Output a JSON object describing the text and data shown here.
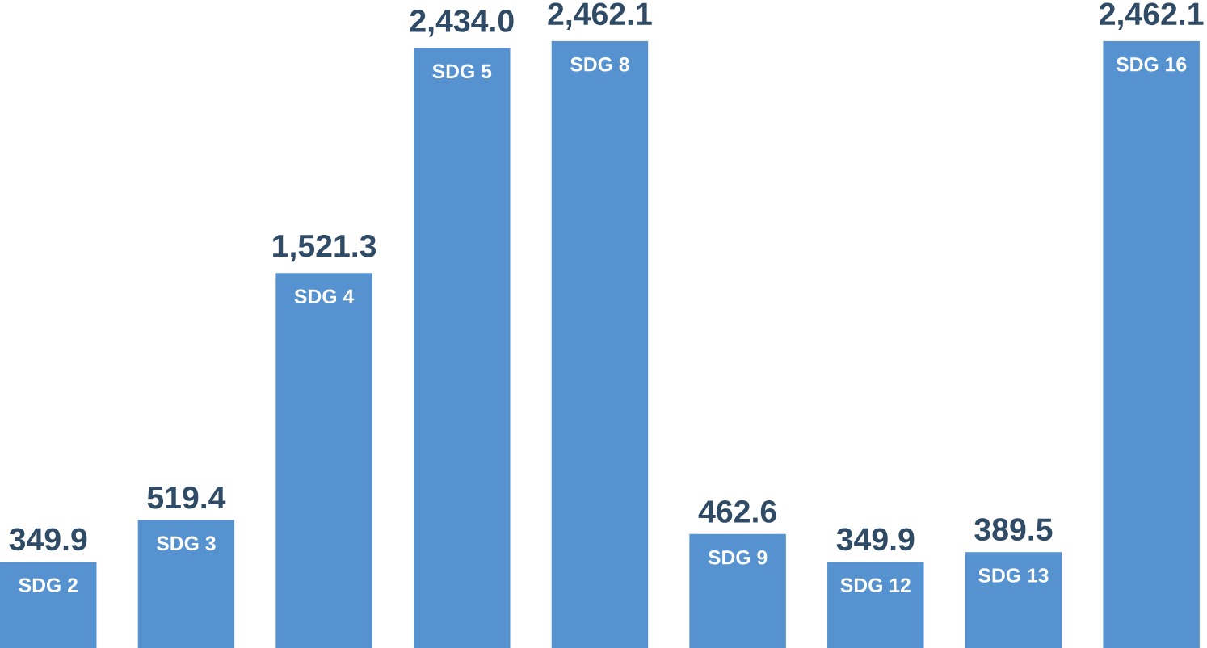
{
  "chart_data": {
    "type": "bar",
    "categories": [
      "SDG 2",
      "SDG 3",
      "SDG 4",
      "SDG 5",
      "SDG 8",
      "SDG 9",
      "SDG 12",
      "SDG 13",
      "SDG 16"
    ],
    "values": [
      349.9,
      519.4,
      1521.3,
      2434.0,
      2462.1,
      462.6,
      349.9,
      389.5,
      2462.1
    ],
    "value_labels": [
      "349.9",
      "519.4",
      "1,521.3",
      "2,434.0",
      "2,462.1",
      "462.6",
      "349.9",
      "389.5",
      "2,462.1"
    ],
    "color": "#5592cf"
  }
}
